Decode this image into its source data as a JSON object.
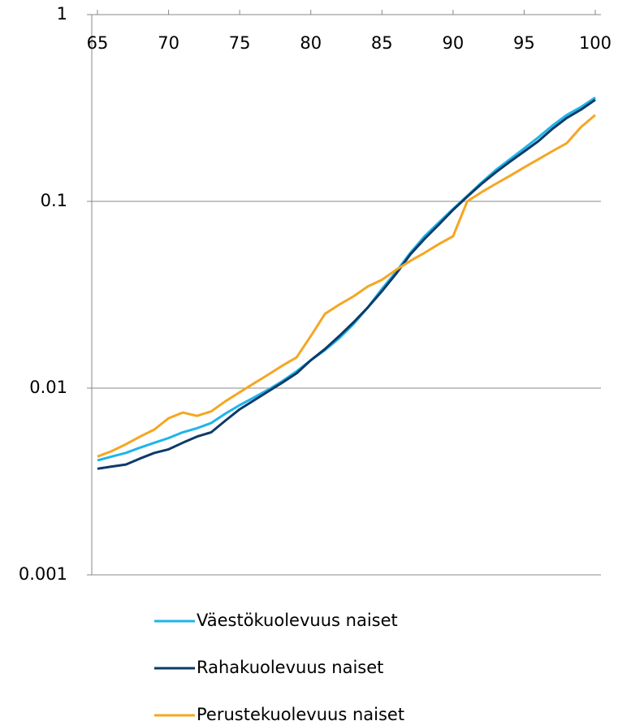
{
  "chart_data": {
    "type": "line",
    "x": [
      65,
      66,
      67,
      68,
      69,
      70,
      71,
      72,
      73,
      74,
      75,
      76,
      77,
      78,
      79,
      80,
      81,
      82,
      83,
      84,
      85,
      86,
      87,
      88,
      89,
      90,
      91,
      92,
      93,
      94,
      95,
      96,
      97,
      98,
      99,
      100
    ],
    "series": [
      {
        "name": "Väestökuolevuus naiset",
        "color": "#1fb4ea",
        "values": [
          0.0041,
          0.0043,
          0.0045,
          0.0048,
          0.0051,
          0.0054,
          0.0058,
          0.0061,
          0.0065,
          0.0073,
          0.0081,
          0.0089,
          0.0098,
          0.0109,
          0.0123,
          0.0141,
          0.016,
          0.0185,
          0.022,
          0.027,
          0.034,
          0.042,
          0.053,
          0.065,
          0.077,
          0.091,
          0.107,
          0.126,
          0.147,
          0.168,
          0.192,
          0.22,
          0.255,
          0.29,
          0.32,
          0.36
        ]
      },
      {
        "name": "Rahakuolevuus naiset",
        "color": "#0d3a68",
        "values": [
          0.0037,
          0.0038,
          0.0039,
          0.0042,
          0.0045,
          0.0047,
          0.0051,
          0.0055,
          0.0058,
          0.0067,
          0.0077,
          0.0086,
          0.0096,
          0.0107,
          0.012,
          0.0141,
          0.0162,
          0.019,
          0.0225,
          0.027,
          0.033,
          0.041,
          0.052,
          0.063,
          0.075,
          0.09,
          0.106,
          0.124,
          0.143,
          0.163,
          0.185,
          0.21,
          0.245,
          0.28,
          0.31,
          0.35
        ]
      },
      {
        "name": "Perustekuolevuus naiset",
        "color": "#f5a623",
        "values": [
          0.0043,
          0.0046,
          0.005,
          0.0055,
          0.006,
          0.0069,
          0.0074,
          0.0071,
          0.0075,
          0.0085,
          0.0095,
          0.0106,
          0.0118,
          0.0132,
          0.0146,
          0.019,
          0.025,
          0.028,
          0.031,
          0.035,
          0.038,
          0.043,
          0.048,
          0.053,
          0.059,
          0.065,
          0.1,
          0.112,
          0.124,
          0.137,
          0.152,
          0.168,
          0.186,
          0.205,
          0.25,
          0.29
        ]
      }
    ],
    "xlim": [
      64.6,
      100.4
    ],
    "xticks": [
      65,
      70,
      75,
      80,
      85,
      90,
      95,
      100
    ],
    "ylim": [
      0.001,
      1
    ],
    "yticks": [
      0.001,
      0.01,
      0.1,
      1
    ],
    "log_y": true,
    "grid": true,
    "legend": "bottom"
  }
}
